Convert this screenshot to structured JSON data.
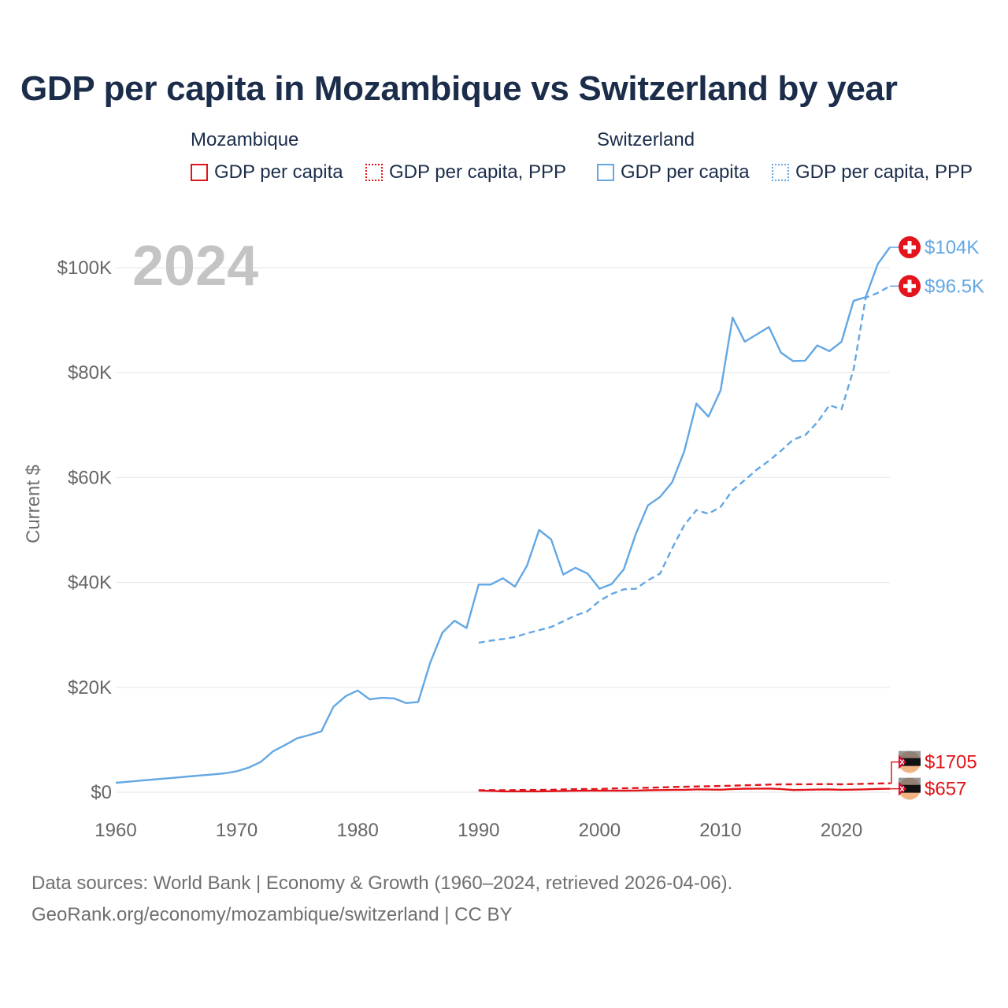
{
  "title": "GDP per capita in Mozambique vs Switzerland by year",
  "legend": {
    "mozambique": {
      "title": "Mozambique",
      "items": [
        "GDP per capita",
        "GDP per capita, PPP"
      ]
    },
    "switzerland": {
      "title": "Switzerland",
      "items": [
        "GDP per capita",
        "GDP per capita, PPP"
      ]
    }
  },
  "colors": {
    "mozambique": "#e0151b",
    "switzerland": "#63a7e3",
    "grid": "#e6e6e6",
    "axis_text": "#666666",
    "year_watermark": "#c4c4c4"
  },
  "chart_data": {
    "type": "line",
    "ylabel": "Current $",
    "xlim": [
      1960,
      2024
    ],
    "ylim": [
      0,
      100000
    ],
    "y_ticks": [
      0,
      20000,
      40000,
      60000,
      80000,
      100000
    ],
    "y_tick_labels": [
      "$0",
      "$20K",
      "$40K",
      "$60K",
      "$80K",
      "$100K"
    ],
    "x_ticks": [
      1960,
      1970,
      1980,
      1990,
      2000,
      2010,
      2020
    ],
    "x_tick_labels": [
      "1960",
      "1970",
      "1980",
      "1990",
      "2000",
      "2010",
      "2020"
    ],
    "year_label": "2024",
    "series": [
      {
        "name": "Switzerland GDP per capita",
        "country": "switzerland",
        "style": "solid",
        "end_label": "$104K",
        "points": [
          [
            1960,
            1800
          ],
          [
            1961,
            2000
          ],
          [
            1962,
            2200
          ],
          [
            1963,
            2400
          ],
          [
            1964,
            2600
          ],
          [
            1965,
            2800
          ],
          [
            1966,
            3000
          ],
          [
            1967,
            3200
          ],
          [
            1968,
            3400
          ],
          [
            1969,
            3600
          ],
          [
            1970,
            4000
          ],
          [
            1971,
            4700
          ],
          [
            1972,
            5800
          ],
          [
            1973,
            7800
          ],
          [
            1974,
            9000
          ],
          [
            1975,
            10300
          ],
          [
            1976,
            10900
          ],
          [
            1977,
            11600
          ],
          [
            1978,
            16300
          ],
          [
            1979,
            18300
          ],
          [
            1980,
            19400
          ],
          [
            1981,
            17700
          ],
          [
            1982,
            18000
          ],
          [
            1983,
            17900
          ],
          [
            1984,
            17000
          ],
          [
            1985,
            17200
          ],
          [
            1986,
            24700
          ],
          [
            1987,
            30400
          ],
          [
            1988,
            32700
          ],
          [
            1989,
            31300
          ],
          [
            1990,
            39600
          ],
          [
            1991,
            39600
          ],
          [
            1992,
            40800
          ],
          [
            1993,
            39200
          ],
          [
            1994,
            43200
          ],
          [
            1995,
            50000
          ],
          [
            1996,
            48200
          ],
          [
            1997,
            41500
          ],
          [
            1998,
            42800
          ],
          [
            1999,
            41700
          ],
          [
            2000,
            38800
          ],
          [
            2001,
            39700
          ],
          [
            2002,
            42500
          ],
          [
            2003,
            49300
          ],
          [
            2004,
            54700
          ],
          [
            2005,
            56300
          ],
          [
            2006,
            59100
          ],
          [
            2007,
            65000
          ],
          [
            2008,
            74100
          ],
          [
            2009,
            71600
          ],
          [
            2010,
            76600
          ],
          [
            2011,
            90500
          ],
          [
            2012,
            85900
          ],
          [
            2013,
            87300
          ],
          [
            2014,
            88700
          ],
          [
            2015,
            83800
          ],
          [
            2016,
            82200
          ],
          [
            2017,
            82300
          ],
          [
            2018,
            85200
          ],
          [
            2019,
            84100
          ],
          [
            2020,
            85900
          ],
          [
            2021,
            93700
          ],
          [
            2022,
            94400
          ],
          [
            2023,
            100700
          ],
          [
            2024,
            103900
          ]
        ]
      },
      {
        "name": "Switzerland GDP per capita, PPP",
        "country": "switzerland",
        "style": "dashed",
        "end_label": "$96.5K",
        "points": [
          [
            1990,
            28500
          ],
          [
            1991,
            28900
          ],
          [
            1992,
            29200
          ],
          [
            1993,
            29600
          ],
          [
            1994,
            30300
          ],
          [
            1995,
            30900
          ],
          [
            1996,
            31500
          ],
          [
            1997,
            32600
          ],
          [
            1998,
            33700
          ],
          [
            1999,
            34500
          ],
          [
            2000,
            36500
          ],
          [
            2001,
            37800
          ],
          [
            2002,
            38700
          ],
          [
            2003,
            38800
          ],
          [
            2004,
            40400
          ],
          [
            2005,
            41700
          ],
          [
            2006,
            46500
          ],
          [
            2007,
            50900
          ],
          [
            2008,
            53800
          ],
          [
            2009,
            53100
          ],
          [
            2010,
            54400
          ],
          [
            2011,
            57600
          ],
          [
            2012,
            59500
          ],
          [
            2013,
            61500
          ],
          [
            2014,
            63200
          ],
          [
            2015,
            65100
          ],
          [
            2016,
            67200
          ],
          [
            2017,
            68100
          ],
          [
            2018,
            70500
          ],
          [
            2019,
            73800
          ],
          [
            2020,
            73000
          ],
          [
            2021,
            80600
          ],
          [
            2022,
            94300
          ],
          [
            2023,
            95200
          ],
          [
            2024,
            96500
          ]
        ]
      },
      {
        "name": "Mozambique GDP per capita",
        "country": "mozambique",
        "style": "solid",
        "end_label": "$657",
        "points": [
          [
            1990,
            290
          ],
          [
            1991,
            260
          ],
          [
            1992,
            160
          ],
          [
            1993,
            170
          ],
          [
            1994,
            170
          ],
          [
            1995,
            160
          ],
          [
            1996,
            190
          ],
          [
            1997,
            240
          ],
          [
            1998,
            270
          ],
          [
            1999,
            290
          ],
          [
            2000,
            300
          ],
          [
            2001,
            280
          ],
          [
            2002,
            300
          ],
          [
            2003,
            320
          ],
          [
            2004,
            370
          ],
          [
            2005,
            410
          ],
          [
            2006,
            430
          ],
          [
            2007,
            470
          ],
          [
            2008,
            540
          ],
          [
            2009,
            510
          ],
          [
            2010,
            480
          ],
          [
            2011,
            620
          ],
          [
            2012,
            670
          ],
          [
            2013,
            690
          ],
          [
            2014,
            700
          ],
          [
            2015,
            620
          ],
          [
            2016,
            420
          ],
          [
            2017,
            460
          ],
          [
            2018,
            510
          ],
          [
            2019,
            520
          ],
          [
            2020,
            460
          ],
          [
            2021,
            500
          ],
          [
            2022,
            550
          ],
          [
            2023,
            630
          ],
          [
            2024,
            657
          ]
        ]
      },
      {
        "name": "Mozambique GDP per capita, PPP",
        "country": "mozambique",
        "style": "dashed",
        "end_label": "$1705",
        "points": [
          [
            1990,
            380
          ],
          [
            1991,
            410
          ],
          [
            1992,
            380
          ],
          [
            1993,
            410
          ],
          [
            1994,
            430
          ],
          [
            1995,
            430
          ],
          [
            1996,
            470
          ],
          [
            1997,
            520
          ],
          [
            1998,
            580
          ],
          [
            1999,
            620
          ],
          [
            2000,
            620
          ],
          [
            2001,
            700
          ],
          [
            2002,
            760
          ],
          [
            2003,
            800
          ],
          [
            2004,
            860
          ],
          [
            2005,
            920
          ],
          [
            2006,
            990
          ],
          [
            2007,
            1040
          ],
          [
            2008,
            1100
          ],
          [
            2009,
            1140
          ],
          [
            2010,
            1190
          ],
          [
            2011,
            1250
          ],
          [
            2012,
            1320
          ],
          [
            2013,
            1380
          ],
          [
            2014,
            1450
          ],
          [
            2015,
            1500
          ],
          [
            2016,
            1500
          ],
          [
            2017,
            1510
          ],
          [
            2018,
            1530
          ],
          [
            2019,
            1540
          ],
          [
            2020,
            1500
          ],
          [
            2021,
            1540
          ],
          [
            2022,
            1620
          ],
          [
            2023,
            1670
          ],
          [
            2024,
            1705
          ]
        ]
      }
    ]
  },
  "source": {
    "line1": "Data sources: World Bank | Economy & Growth (1960–2024, retrieved 2026-04-06).",
    "line2": "GeoRank.org/economy/mozambique/switzerland | CC BY"
  }
}
